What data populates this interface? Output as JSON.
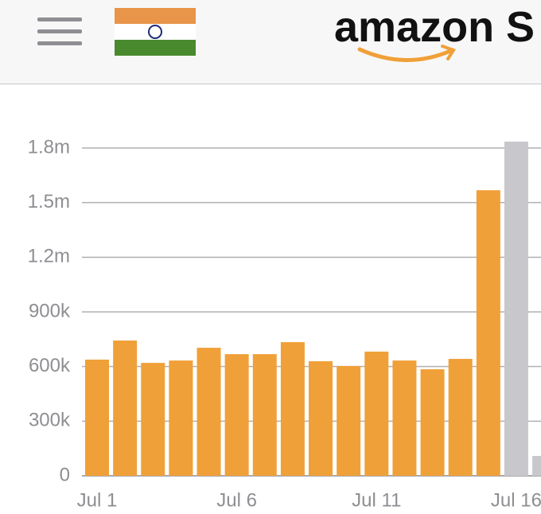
{
  "header": {
    "logo": "amazon S"
  },
  "chart_data": {
    "type": "bar",
    "categories": [
      "Jul 1",
      null,
      null,
      null,
      null,
      "Jul 6",
      null,
      null,
      null,
      null,
      "Jul 11",
      null,
      null,
      null,
      null,
      "Jul 16",
      null
    ],
    "values": [
      638000,
      743000,
      620000,
      633000,
      703000,
      668000,
      668000,
      734000,
      629000,
      603000,
      682000,
      633000,
      585000,
      642000,
      1568000,
      1835000,
      109000
    ],
    "colors": [
      "#f0a038",
      "#f0a038",
      "#f0a038",
      "#f0a038",
      "#f0a038",
      "#f0a038",
      "#f0a038",
      "#f0a038",
      "#f0a038",
      "#f0a038",
      "#f0a038",
      "#f0a038",
      "#f0a038",
      "#f0a038",
      "#f0a038",
      "#c7c7cc",
      "#c7c7cc"
    ],
    "ylim": [
      0,
      1800000
    ],
    "yticks": [
      0,
      {
        "value": 300000,
        "label": "300k"
      },
      {
        "value": 600000,
        "label": "600k"
      },
      {
        "value": 900000,
        "label": "900k"
      },
      {
        "value": 1200000,
        "label": "1.2m"
      },
      {
        "value": 1500000,
        "label": "1.5m"
      },
      {
        "value": 1800000,
        "label": "1.8m"
      }
    ],
    "grid": true
  }
}
